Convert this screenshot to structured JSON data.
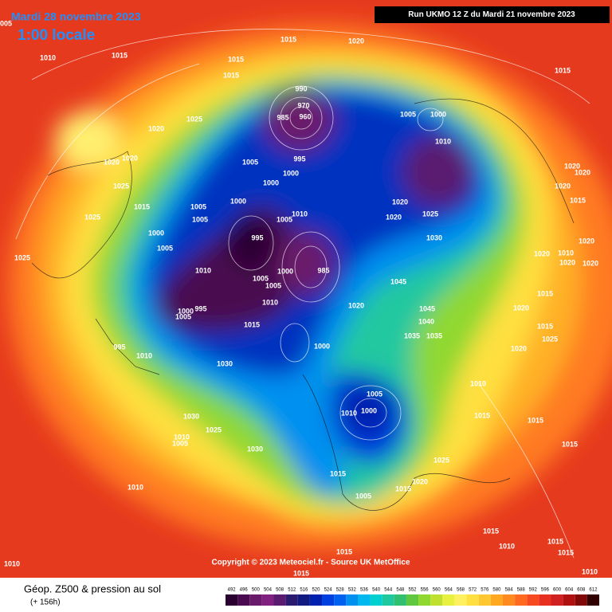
{
  "header": {
    "date": "Mardi 28 novembre 2023",
    "time": "1:00 locale",
    "run": "Run UKMO 12 Z du Mardi 21 novembre 2023"
  },
  "map": {
    "copyright": "Copyright © 2023 Meteociel.fr - Source UK MetOffice",
    "pressure_labels": [
      1005,
      1010,
      1015,
      1015,
      1020,
      1015,
      1015,
      990,
      970,
      960,
      985,
      1020,
      1025,
      1020,
      1020,
      1025,
      1015,
      1025,
      1025,
      1005,
      1000,
      995,
      1000,
      1005,
      1005,
      1000,
      1000,
      1005,
      995,
      1010,
      1005,
      1005,
      1010,
      1005,
      1010,
      1015,
      1000,
      985,
      1000,
      1005,
      995,
      1000,
      1030,
      995,
      1010,
      1020,
      1045,
      1045,
      1040,
      1035,
      1035,
      1005,
      1000,
      1010,
      1020,
      1020,
      1025,
      1030,
      1005,
      1010,
      1000,
      1030,
      1010,
      1005,
      1025,
      1030,
      1010,
      1015,
      1005,
      1015,
      1020,
      1025,
      1010,
      1015,
      1015,
      1015,
      1020,
      1015,
      1015,
      1025,
      1020,
      1020,
      1020,
      1020,
      1015,
      1020,
      1020,
      1010,
      1020,
      1020,
      1015,
      1015,
      1010,
      1015,
      1015,
      1010,
      1015,
      1015,
      1010
    ]
  },
  "legend": {
    "title": "Géop. Z500 & pression au sol",
    "subtitle": "(+ 156h)",
    "levels": [
      492,
      496,
      500,
      504,
      508,
      512,
      516,
      520,
      524,
      528,
      532,
      536,
      540,
      544,
      548,
      552,
      556,
      560,
      564,
      568,
      572,
      576,
      580,
      584,
      588,
      592,
      596,
      600,
      604,
      608,
      612
    ],
    "colors": [
      "#2a0030",
      "#4a0a50",
      "#6a1a6a",
      "#802080",
      "#5a1a70",
      "#2a1a70",
      "#101a80",
      "#0020b0",
      "#0040e0",
      "#0060f0",
      "#0090f0",
      "#00b8f0",
      "#00d0d0",
      "#20c8a0",
      "#30c070",
      "#60c840",
      "#90d830",
      "#c0e030",
      "#e8f040",
      "#fff060",
      "#ffe040",
      "#ffc830",
      "#ffa820",
      "#ff8a20",
      "#ff6a20",
      "#f84a20",
      "#e83020",
      "#d02020",
      "#b01010",
      "#800808",
      "#300000"
    ]
  }
}
